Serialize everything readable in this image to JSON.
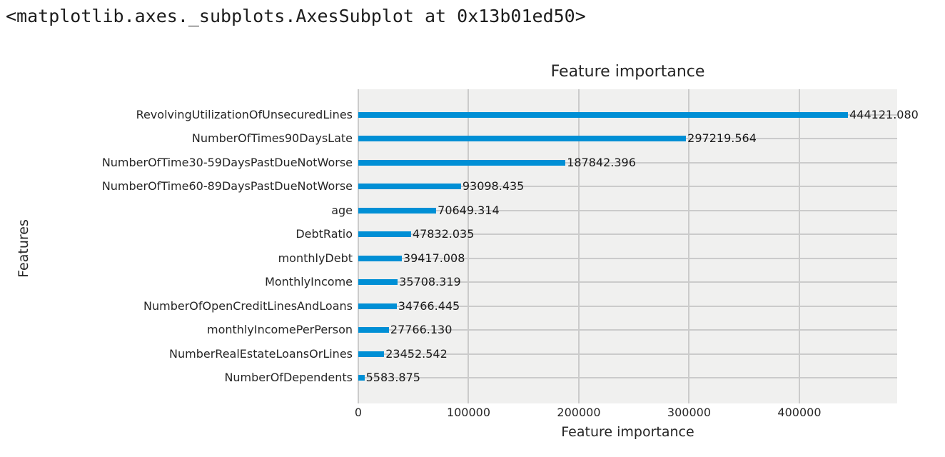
{
  "notebook": {
    "repr_output": "<matplotlib.axes._subplots.AxesSubplot at 0x13b01ed50>"
  },
  "chart_data": {
    "type": "bar",
    "orientation": "horizontal",
    "title": "Feature importance",
    "xlabel": "Feature importance",
    "ylabel": "Features",
    "categories": [
      "RevolvingUtilizationOfUnsecuredLines",
      "NumberOfTimes90DaysLate",
      "NumberOfTime30-59DaysPastDueNotWorse",
      "NumberOfTime60-89DaysPastDueNotWorse",
      "age",
      "DebtRatio",
      "monthlyDebt",
      "MonthlyIncome",
      "NumberOfOpenCreditLinesAndLoans",
      "monthlyIncomePerPerson",
      "NumberRealEstateLoansOrLines",
      "NumberOfDependents"
    ],
    "values": [
      444121.08,
      297219.564,
      187842.396,
      93098.435,
      70649.314,
      47832.035,
      39417.008,
      35708.319,
      34766.445,
      27766.13,
      23452.542,
      5583.875
    ],
    "value_labels": [
      "444121.080",
      "297219.564",
      "187842.396",
      "93098.435",
      "70649.314",
      "47832.035",
      "39417.008",
      "35708.319",
      "34766.445",
      "27766.130",
      "23452.542",
      "5583.875"
    ],
    "xticks": [
      0,
      100000,
      200000,
      300000,
      400000
    ],
    "xtick_labels": [
      "0",
      "100000",
      "200000",
      "300000",
      "400000"
    ],
    "xlim": [
      0,
      488700
    ],
    "grid": true,
    "legend": false,
    "colors": {
      "bar": "#008fd5",
      "plot_background": "#f0f0ef",
      "grid": "#cbcbcb",
      "text": "#262626"
    }
  }
}
